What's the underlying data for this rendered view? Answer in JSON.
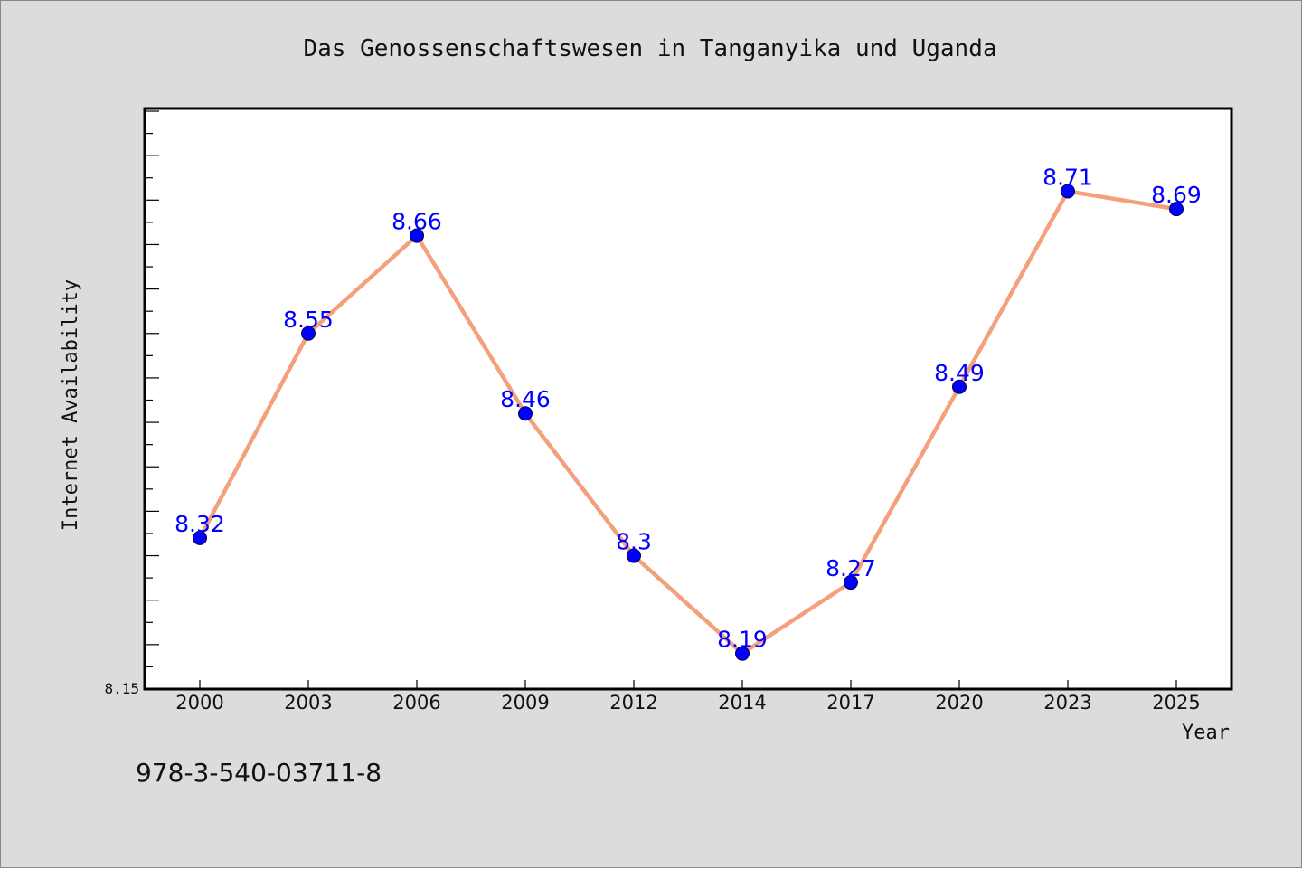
{
  "chart_data": {
    "type": "line",
    "title": "Das Genossenschaftswesen in Tanganyika und Uganda",
    "xlabel": "Year",
    "ylabel": "Internet Availability",
    "categories": [
      "2000",
      "2003",
      "2006",
      "2009",
      "2012",
      "2014",
      "2017",
      "2020",
      "2023",
      "2025"
    ],
    "values": [
      8.32,
      8.55,
      8.66,
      8.46,
      8.3,
      8.19,
      8.27,
      8.49,
      8.71,
      8.69
    ],
    "data_labels": [
      "8.32",
      "8.55",
      "8.66",
      "8.46",
      "8.3",
      "8.19",
      "8.27",
      "8.49",
      "8.71",
      "8.69"
    ],
    "ylim": [
      8.15,
      8.8
    ],
    "y_min_label": "8.15",
    "grid": false,
    "line_color": "#f4a07c",
    "marker_color": "#0000ff",
    "label_color": "#0000ff"
  },
  "footer": {
    "isbn": "978-3-540-03711-8"
  }
}
